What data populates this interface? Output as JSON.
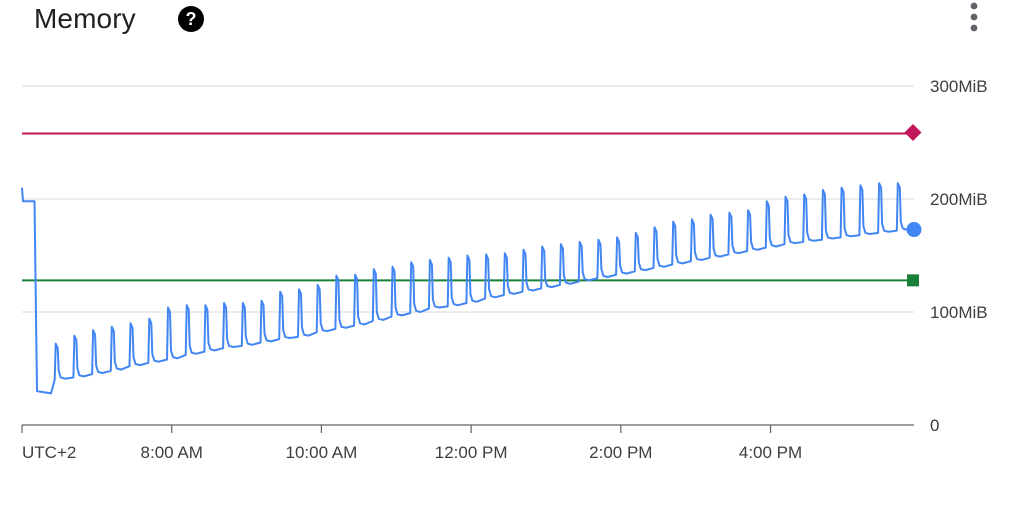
{
  "header": {
    "title": "Memory",
    "help_icon": "help-circle-icon",
    "menu_icon": "more-vert-icon"
  },
  "chart_data": {
    "type": "line",
    "title": "Memory",
    "timezone_label": "UTC+2",
    "x_ticks": [
      "8:00 AM",
      "10:00 AM",
      "12:00 PM",
      "2:00 PM",
      "4:00 PM"
    ],
    "x_range": [
      "06:00",
      "17:55"
    ],
    "y_ticks": [
      "0",
      "100MiB",
      "200MiB",
      "300MiB"
    ],
    "y_tick_values": [
      0,
      100,
      200,
      300
    ],
    "ylim": [
      0,
      300
    ],
    "y_unit": "MiB",
    "grid": true,
    "colors": {
      "line": "#4285f4",
      "upper": "#c2185b",
      "lower": "#188038",
      "grid": "#e0e0e0"
    },
    "series": [
      {
        "values_note": "sawtooth: each cycle spikes to peak then falls to a baseline",
        "start": {
          "time": "06:00",
          "value": 210
        },
        "initial_plateau": {
          "time_end": "06:10",
          "value": 198
        },
        "drop": {
          "time": "06:12",
          "value": 30
        },
        "cycles": [
          {
            "t": "06:27",
            "base": 40,
            "peak": 72
          },
          {
            "t": "06:42",
            "base": 42,
            "peak": 79
          },
          {
            "t": "06:57",
            "base": 45,
            "peak": 84
          },
          {
            "t": "07:12",
            "base": 48,
            "peak": 87
          },
          {
            "t": "07:27",
            "base": 52,
            "peak": 90
          },
          {
            "t": "07:42",
            "base": 55,
            "peak": 94
          },
          {
            "t": "07:57",
            "base": 58,
            "peak": 104
          },
          {
            "t": "08:12",
            "base": 62,
            "peak": 106
          },
          {
            "t": "08:27",
            "base": 65,
            "peak": 106
          },
          {
            "t": "08:42",
            "base": 68,
            "peak": 108
          },
          {
            "t": "08:57",
            "base": 70,
            "peak": 108
          },
          {
            "t": "09:12",
            "base": 73,
            "peak": 110
          },
          {
            "t": "09:27",
            "base": 76,
            "peak": 118
          },
          {
            "t": "09:42",
            "base": 78,
            "peak": 120
          },
          {
            "t": "09:57",
            "base": 82,
            "peak": 124
          },
          {
            "t": "10:12",
            "base": 85,
            "peak": 132
          },
          {
            "t": "10:27",
            "base": 88,
            "peak": 133
          },
          {
            "t": "10:42",
            "base": 92,
            "peak": 138
          },
          {
            "t": "10:57",
            "base": 96,
            "peak": 140
          },
          {
            "t": "11:12",
            "base": 99,
            "peak": 144
          },
          {
            "t": "11:27",
            "base": 103,
            "peak": 146
          },
          {
            "t": "11:42",
            "base": 105,
            "peak": 148
          },
          {
            "t": "11:57",
            "base": 108,
            "peak": 150
          },
          {
            "t": "12:12",
            "base": 112,
            "peak": 151
          },
          {
            "t": "12:27",
            "base": 115,
            "peak": 152
          },
          {
            "t": "12:42",
            "base": 118,
            "peak": 155
          },
          {
            "t": "12:57",
            "base": 121,
            "peak": 158
          },
          {
            "t": "13:12",
            "base": 124,
            "peak": 160
          },
          {
            "t": "13:27",
            "base": 127,
            "peak": 162
          },
          {
            "t": "13:42",
            "base": 130,
            "peak": 164
          },
          {
            "t": "13:57",
            "base": 133,
            "peak": 166
          },
          {
            "t": "14:12",
            "base": 136,
            "peak": 170
          },
          {
            "t": "14:27",
            "base": 139,
            "peak": 175
          },
          {
            "t": "14:42",
            "base": 142,
            "peak": 180
          },
          {
            "t": "14:57",
            "base": 145,
            "peak": 182
          },
          {
            "t": "15:12",
            "base": 148,
            "peak": 186
          },
          {
            "t": "15:27",
            "base": 151,
            "peak": 188
          },
          {
            "t": "15:42",
            "base": 154,
            "peak": 190
          },
          {
            "t": "15:57",
            "base": 157,
            "peak": 198
          },
          {
            "t": "16:12",
            "base": 160,
            "peak": 202
          },
          {
            "t": "16:27",
            "base": 162,
            "peak": 204
          },
          {
            "t": "16:42",
            "base": 164,
            "peak": 208
          },
          {
            "t": "16:57",
            "base": 166,
            "peak": 210
          },
          {
            "t": "17:12",
            "base": 168,
            "peak": 212
          },
          {
            "t": "17:27",
            "base": 170,
            "peak": 214
          },
          {
            "t": "17:42",
            "base": 172,
            "peak": 214
          }
        ],
        "end": {
          "time": "17:55",
          "value": 173
        }
      }
    ],
    "reference_lines": [
      {
        "value": 258,
        "color": "#c2185b",
        "marker": "diamond"
      },
      {
        "value": 128,
        "color": "#188038",
        "marker": "square"
      }
    ]
  }
}
